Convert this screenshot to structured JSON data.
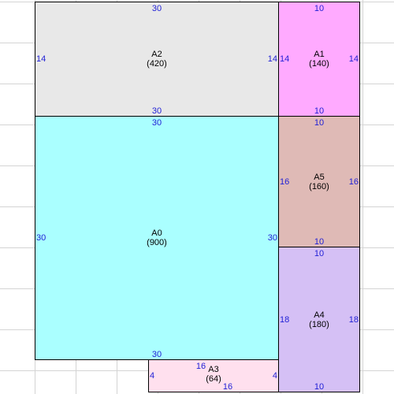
{
  "colors": {
    "grid": "#d4d4d4",
    "border": "#000000",
    "dimension_text": "#1f1fd6",
    "label_text": "#000000"
  },
  "areas": [
    {
      "id": "A2",
      "name": "A2",
      "area": "(420)",
      "color": "#e8e8e8",
      "width_label": "30",
      "height_label": "14"
    },
    {
      "id": "A1",
      "name": "A1",
      "area": "(140)",
      "color": "#ffaaff",
      "width_label": "10",
      "height_label": "14"
    },
    {
      "id": "A0",
      "name": "A0",
      "area": "(900)",
      "color": "#aaffff",
      "width_label": "30",
      "height_label": "30"
    },
    {
      "id": "A5",
      "name": "A5",
      "area": "(160)",
      "color": "#dfbab6",
      "width_label": "10",
      "height_label": "16"
    },
    {
      "id": "A4",
      "name": "A4",
      "area": "(180)",
      "color": "#d5c0f5",
      "width_label": "10",
      "height_label": "18"
    },
    {
      "id": "A3",
      "name": "A3",
      "area": "(64)",
      "color": "#ffe0ee",
      "width_label": "16",
      "height_label": "4"
    }
  ]
}
